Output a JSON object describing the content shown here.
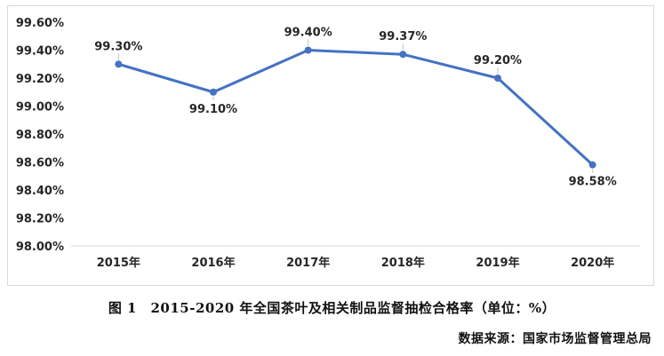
{
  "chart_data": {
    "type": "line",
    "categories": [
      "2015年",
      "2016年",
      "2017年",
      "2018年",
      "2019年",
      "2020年"
    ],
    "series": [
      {
        "values": [
          99.3,
          99.1,
          99.4,
          99.37,
          99.2,
          98.58
        ],
        "data_labels": [
          "99.30%",
          "99.10%",
          "99.40%",
          "99.37%",
          "99.20%",
          "98.58%"
        ],
        "color": "#4472C4"
      }
    ],
    "ylim": [
      98.0,
      99.6
    ],
    "yticks": [
      "98.00%",
      "98.20%",
      "98.40%",
      "98.60%",
      "98.80%",
      "99.00%",
      "99.20%",
      "99.40%",
      "99.60%"
    ],
    "grid": false,
    "legend": "none"
  },
  "caption": "图 1　2015-2020 年全国茶叶及相关制品监督抽检合格率（单位：%）",
  "source": "数据来源：国家市场监督管理总局"
}
